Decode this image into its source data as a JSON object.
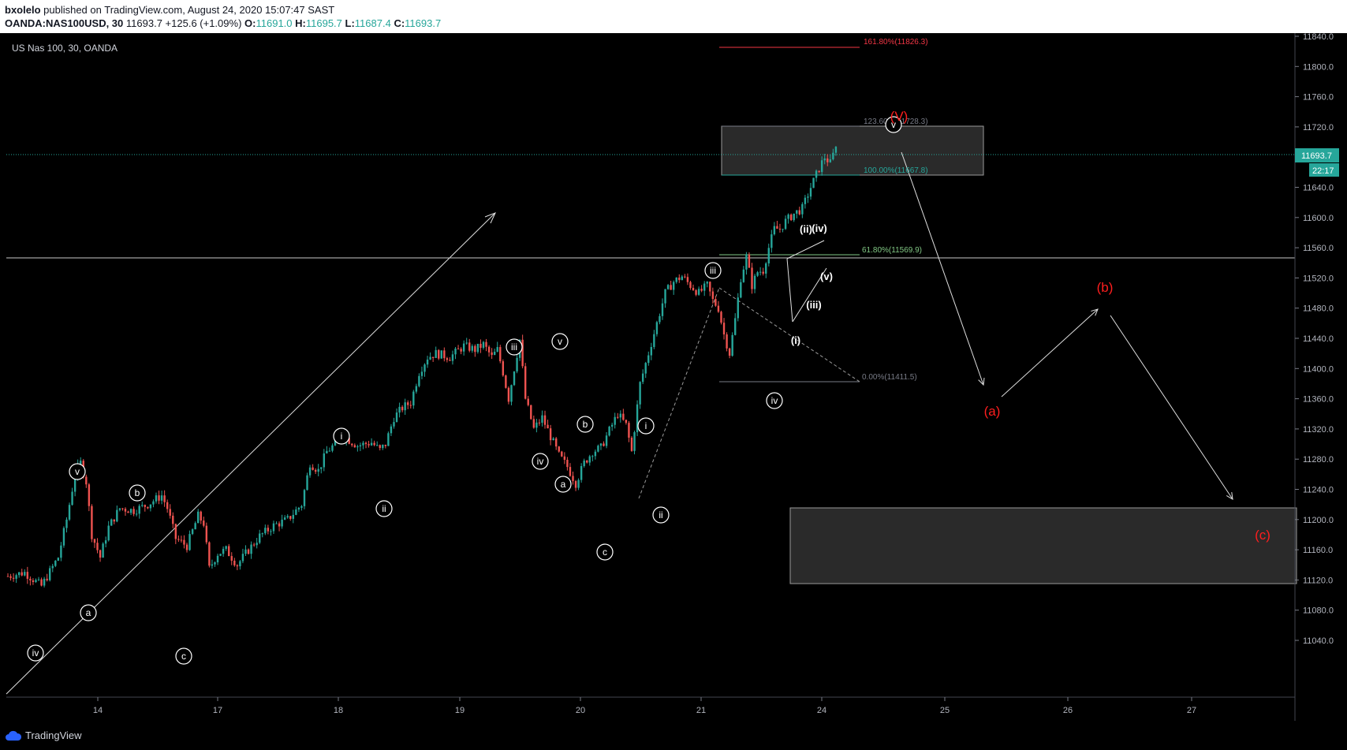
{
  "header": {
    "publisher": "bxolelo",
    "published_text": " published on TradingView.com, August 24, 2020 15:07:47 SAST",
    "symbol": "OANDA:NAS100USD, 30",
    "last": "11693.7",
    "change": "+125.6 (+1.09%)",
    "o_label": "O:",
    "o": "11691.0",
    "h_label": "H:",
    "h": "11695.7",
    "l_label": "L:",
    "l": "11687.4",
    "c_label": "C:",
    "c": "11693.7"
  },
  "legend_title": "US Nas 100, 30, OANDA",
  "footer_brand": "TradingView",
  "price_axis": {
    "ticks": [
      "11840.0",
      "11800.0",
      "11760.0",
      "11720.0",
      "11680.0",
      "11640.0",
      "11600.0",
      "11560.0",
      "11520.0",
      "11480.0",
      "11440.0",
      "11400.0",
      "11360.0",
      "11320.0",
      "11280.0",
      "11240.0",
      "11200.0",
      "11160.0",
      "11120.0",
      "11080.0",
      "11040.0"
    ],
    "current_price": "11693.7",
    "countdown": "22:17"
  },
  "time_axis": {
    "ticks": [
      "14",
      "17",
      "18",
      "19",
      "20",
      "21",
      "24",
      "25",
      "26",
      "27"
    ]
  },
  "colors": {
    "up": "#26a69a",
    "down": "#ef5350",
    "red_label": "#ff1e1e",
    "fib_red": "#f23645",
    "fib_green": "#81c784",
    "fib_teal": "#26a69a",
    "fib_gray": "#787b86"
  },
  "fib_levels": [
    {
      "label": "161.80%(11826.3)",
      "color": "#f23645"
    },
    {
      "label": "123.60%(11728.3)",
      "color": "#787b86"
    },
    {
      "label": "100.00%(11667.8)",
      "color": "#26a69a"
    },
    {
      "label": "61.80%(11569.9)",
      "color": "#81c784"
    },
    {
      "label": "0.00%(11411.5)",
      "color": "#787b86"
    }
  ],
  "wave_labels": {
    "circled": [
      "iv",
      "v",
      "a",
      "b",
      "c",
      "i",
      "ii",
      "iii",
      "iv",
      "v",
      "a",
      "b",
      "c",
      "i",
      "ii",
      "iii",
      "iv",
      "v"
    ],
    "plain_white": [
      "(i)",
      "(ii)",
      "(iii)",
      "(iv)",
      "(v)"
    ],
    "red": [
      "(V)",
      "(a)",
      "(b)",
      "(c)"
    ]
  },
  "chart_data": {
    "type": "candlestick",
    "title": "US Nas 100, 30, OANDA",
    "xlabel": "",
    "ylabel": "",
    "ylim": [
      11020,
      11850
    ],
    "x_ticks": [
      "14",
      "17",
      "18",
      "19",
      "20",
      "21",
      "24",
      "25",
      "26",
      "27"
    ],
    "close_path": [
      [
        0,
        11125
      ],
      [
        6,
        11130
      ],
      [
        12,
        11112
      ],
      [
        18,
        11150
      ],
      [
        21,
        11200
      ],
      [
        24,
        11260
      ],
      [
        26,
        11275
      ],
      [
        28,
        11250
      ],
      [
        30,
        11180
      ],
      [
        33,
        11150
      ],
      [
        36,
        11190
      ],
      [
        40,
        11215
      ],
      [
        45,
        11212
      ],
      [
        50,
        11220
      ],
      [
        55,
        11232
      ],
      [
        57,
        11215
      ],
      [
        60,
        11175
      ],
      [
        64,
        11165
      ],
      [
        68,
        11205
      ],
      [
        70,
        11195
      ],
      [
        72,
        11135
      ],
      [
        75,
        11155
      ],
      [
        78,
        11160
      ],
      [
        82,
        11140
      ],
      [
        85,
        11155
      ],
      [
        90,
        11178
      ],
      [
        95,
        11192
      ],
      [
        100,
        11200
      ],
      [
        105,
        11220
      ],
      [
        108,
        11275
      ],
      [
        111,
        11265
      ],
      [
        114,
        11290
      ],
      [
        117,
        11300
      ],
      [
        120,
        11310
      ],
      [
        125,
        11298
      ],
      [
        130,
        11302
      ],
      [
        133,
        11292
      ],
      [
        135,
        11300
      ],
      [
        138,
        11335
      ],
      [
        141,
        11348
      ],
      [
        144,
        11355
      ],
      [
        147,
        11395
      ],
      [
        150,
        11415
      ],
      [
        153,
        11420
      ],
      [
        158,
        11415
      ],
      [
        163,
        11430
      ],
      [
        167,
        11425
      ],
      [
        170,
        11432
      ],
      [
        173,
        11415
      ],
      [
        175,
        11425
      ],
      [
        177,
        11395
      ],
      [
        179,
        11360
      ],
      [
        181,
        11400
      ],
      [
        183,
        11438
      ],
      [
        185,
        11360
      ],
      [
        188,
        11320
      ],
      [
        191,
        11335
      ],
      [
        194,
        11310
      ],
      [
        197,
        11285
      ],
      [
        200,
        11270
      ],
      [
        203,
        11248
      ],
      [
        206,
        11275
      ],
      [
        209,
        11290
      ],
      [
        212,
        11295
      ],
      [
        215,
        11318
      ],
      [
        218,
        11340
      ],
      [
        221,
        11325
      ],
      [
        223,
        11290
      ],
      [
        226,
        11380
      ],
      [
        229,
        11420
      ],
      [
        232,
        11460
      ],
      [
        235,
        11500
      ],
      [
        238,
        11515
      ],
      [
        241,
        11522
      ],
      [
        244,
        11510
      ],
      [
        247,
        11500
      ],
      [
        250,
        11510
      ],
      [
        252,
        11490
      ],
      [
        254,
        11480
      ],
      [
        256,
        11445
      ],
      [
        258,
        11420
      ],
      [
        260,
        11465
      ],
      [
        262,
        11520
      ],
      [
        264,
        11548
      ],
      [
        266,
        11510
      ],
      [
        268,
        11528
      ],
      [
        270,
        11530
      ],
      [
        272,
        11560
      ],
      [
        274,
        11585
      ],
      [
        276,
        11585
      ],
      [
        278,
        11595
      ],
      [
        281,
        11605
      ],
      [
        284,
        11612
      ],
      [
        287,
        11640
      ],
      [
        290,
        11665
      ],
      [
        292,
        11680
      ],
      [
        294,
        11672
      ],
      [
        296,
        11693.7
      ]
    ]
  }
}
